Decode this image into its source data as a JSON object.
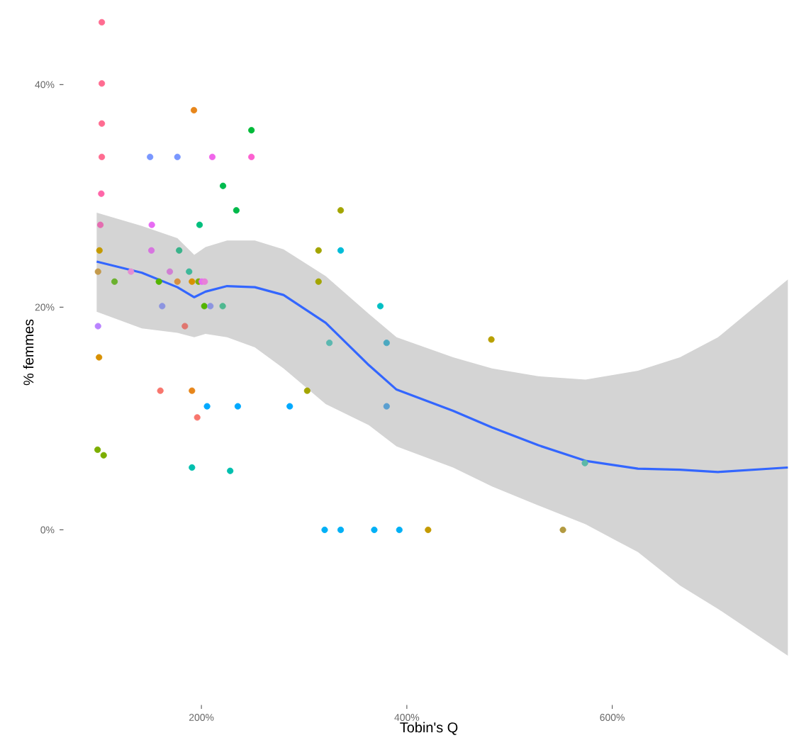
{
  "chart_data": {
    "type": "scatter",
    "xlabel": "Tobin's Q",
    "ylabel": "% femmes",
    "xlim": [
      66,
      777
    ],
    "ylim": [
      -15.7,
      47.6
    ],
    "xticks": [
      {
        "value": 200,
        "label": "200%"
      },
      {
        "value": 400,
        "label": "400%"
      },
      {
        "value": 600,
        "label": "600%"
      }
    ],
    "yticks": [
      {
        "value": 0,
        "label": "0%"
      },
      {
        "value": 20,
        "label": "20%"
      },
      {
        "value": 40,
        "label": "40%"
      }
    ],
    "marker": "circle",
    "series": [
      {
        "x": [
          103,
          103,
          192.7,
          248.7,
          103,
          103,
          150,
          176.6,
          210.6,
          248.7,
          221,
          102.5,
          234,
          335.6,
          101.6,
          151.7,
          198.2,
          100.7,
          151.3,
          178.3,
          314,
          335.6,
          99.3,
          131.4,
          169.2,
          188,
          115.4,
          158.6,
          176.6,
          190.8,
          197.2,
          200.4,
          203.2,
          314,
          202.8,
          208.7,
          161.8,
          220.7,
          374.2,
          99.3,
          183.9,
          324.6,
          380.3,
          100.3,
          160,
          190.8,
          303,
          205.5,
          235.4,
          286,
          380.3,
          195.9,
          98.9,
          104.8,
          190.8,
          228,
          320,
          335.6,
          368.3,
          392.7,
          420.7,
          482.3,
          552,
          573.4
        ],
        "values": [
          45.6,
          40.1,
          37.7,
          35.9,
          36.5,
          33.5,
          33.5,
          33.5,
          33.5,
          33.5,
          30.9,
          30.2,
          28.7,
          28.7,
          27.4,
          27.4,
          27.4,
          25.1,
          25.1,
          25.1,
          25.1,
          25.1,
          23.2,
          23.2,
          23.2,
          23.2,
          22.3,
          22.3,
          22.3,
          22.3,
          22.3,
          22.3,
          22.3,
          22.3,
          20.1,
          20.1,
          20.1,
          20.1,
          20.1,
          18.3,
          18.3,
          16.8,
          16.8,
          15.5,
          12.5,
          12.5,
          12.5,
          11.1,
          11.1,
          11.1,
          11.1,
          10.1,
          7.2,
          6.7,
          5.6,
          5.3,
          0,
          0,
          0,
          0,
          0,
          17.1,
          0,
          6.0
        ],
        "colors": [
          "#ff6c91",
          "#ff6c91",
          "#e7861b",
          "#00ba38",
          "#ff6c91",
          "#ff6c91",
          "#7997ff",
          "#7997ff",
          "#f066ea",
          "#fd61d1",
          "#00bb4e",
          "#ff66a8",
          "#00b94a",
          "#a3a500",
          "#e46db0",
          "#e76bf3",
          "#00bf7d",
          "#c49a00",
          "#d774e0",
          "#39b38a",
          "#a3a500",
          "#00bcd8",
          "#c49a4c",
          "#e58fd2",
          "#d07fd3",
          "#3db89a",
          "#6bb12e",
          "#53b400",
          "#d89040",
          "#d89000",
          "#7cae00",
          "#e76bf3",
          "#e87fd8",
          "#a3a500",
          "#53b400",
          "#8c94e0",
          "#8c94e0",
          "#4fb890",
          "#00bfc4",
          "#b983ff",
          "#e0766f",
          "#5bb8b0",
          "#4ba8c0",
          "#d89000",
          "#f8766d",
          "#e7861b",
          "#a3a500",
          "#00a9ff",
          "#00a9ff",
          "#00a9ff",
          "#5a9fd0",
          "#f8766d",
          "#7cae00",
          "#7cae00",
          "#00bfae",
          "#00bfae",
          "#00b0f6",
          "#00b0f6",
          "#00b0f6",
          "#00b0f6",
          "#c49a00",
          "#b8a000",
          "#b39a40",
          "#5bb8a8"
        ]
      },
      {
        "type": "line",
        "color": "#3366ff",
        "line_style": "solid",
        "marker": "none",
        "x": [
          98,
          142,
          176.6,
          193,
          204,
          225,
          252,
          280,
          321,
          363,
          390,
          445,
          483,
          528,
          574,
          625,
          666,
          703,
          771
        ],
        "values": [
          24.1,
          23.1,
          21.8,
          20.9,
          21.4,
          21.9,
          21.8,
          21.1,
          18.6,
          14.8,
          12.6,
          10.7,
          9.2,
          7.6,
          6.2,
          5.5,
          5.4,
          5.2,
          5.6
        ],
        "upper": [
          28.5,
          27.3,
          26.2,
          24.7,
          25.4,
          26.0,
          26.0,
          25.2,
          22.8,
          19.4,
          17.3,
          15.5,
          14.5,
          13.8,
          13.5,
          14.3,
          15.5,
          17.3,
          22.5
        ],
        "lower": [
          19.6,
          18.1,
          17.7,
          17.3,
          17.6,
          17.3,
          16.4,
          14.5,
          11.3,
          9.4,
          7.5,
          5.6,
          3.9,
          2.2,
          0.5,
          -2.0,
          -5.0,
          -7.1,
          -11.3
        ]
      }
    ]
  }
}
